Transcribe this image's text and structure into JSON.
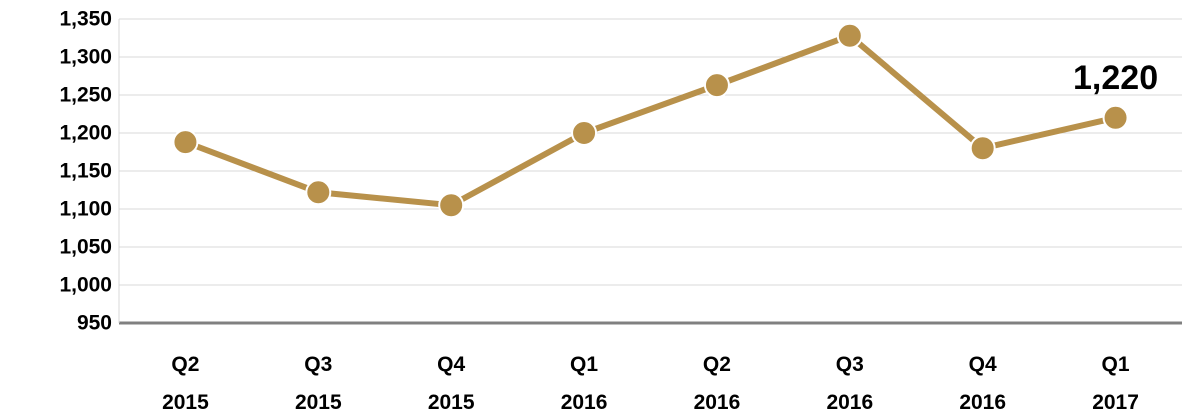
{
  "chart_data": {
    "type": "line",
    "categories": [
      "Q2 2015",
      "Q3 2015",
      "Q4 2015",
      "Q1 2016",
      "Q2 2016",
      "Q3 2016",
      "Q4 2016",
      "Q1 2017"
    ],
    "series": [
      {
        "color": "#b8914b",
        "values": [
          1188,
          1122,
          1105,
          1200,
          1263,
          1328,
          1180,
          1220
        ],
        "value_labels": [
          null,
          null,
          null,
          null,
          null,
          null,
          null,
          "1,220"
        ]
      }
    ],
    "ylim": [
      950,
      1350
    ],
    "yticks": [
      950,
      {
        "value": 1000,
        "label": "1,000"
      },
      {
        "value": 1050,
        "label": "1,050"
      },
      {
        "value": 1100,
        "label": "1,100"
      },
      {
        "value": 1150,
        "label": "1,150"
      },
      {
        "value": 1200,
        "label": "1,200"
      },
      {
        "value": 1250,
        "label": "1,250"
      },
      {
        "value": 1300,
        "label": "1,300"
      },
      {
        "value": 1350,
        "label": "1,350"
      }
    ],
    "grid": true
  }
}
